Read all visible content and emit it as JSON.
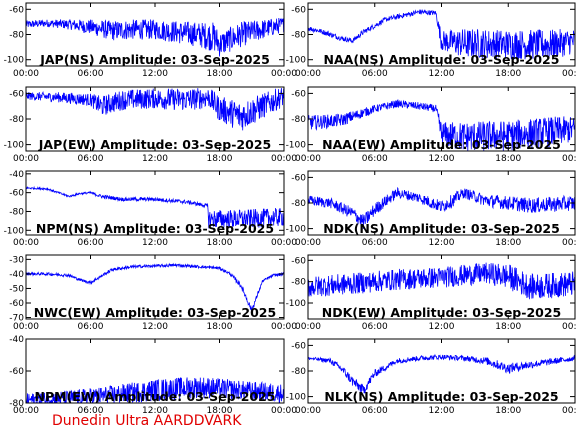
{
  "page": {
    "credit": "Dunedin Ultra AARDDVARK"
  },
  "colors": {
    "trace": "#0000ff",
    "axis": "#000000",
    "credit": "#e00000",
    "background": "#ffffff"
  },
  "chart_data": [
    {
      "type": "line",
      "title": "JAP(NS) Amplitude: 03-Sep-2025",
      "xlim": [
        "00:00",
        "24:00"
      ],
      "xticks": [
        "00:00",
        "06:00",
        "12:00",
        "18:00",
        "00:00"
      ],
      "ylim": [
        -105,
        -55
      ],
      "yticks": [
        -60,
        -80,
        -100
      ],
      "series": [
        {
          "x": [
            0,
            2,
            4,
            6,
            8,
            10,
            12,
            14,
            16,
            17.5,
            18,
            20,
            22,
            24
          ],
          "y": [
            -72,
            -71,
            -72,
            -74,
            -77,
            -76,
            -76,
            -78,
            -80,
            -82,
            -88,
            -80,
            -76,
            -72
          ],
          "noise": [
            3,
            3,
            4,
            6,
            8,
            8,
            8,
            9,
            10,
            12,
            10,
            10,
            8,
            6
          ]
        }
      ]
    },
    {
      "type": "line",
      "title": "NAA(NS) Amplitude: 03-Sep-2025",
      "xlim": [
        "00:00",
        "24:00"
      ],
      "xticks": [
        "00:00",
        "06:00",
        "12:00",
        "18:00",
        "00:00"
      ],
      "ylim": [
        -105,
        -55
      ],
      "yticks": [
        -60,
        -80,
        -100
      ],
      "series": [
        {
          "x": [
            0,
            1,
            3,
            4,
            5,
            7,
            9,
            10,
            11.5,
            12,
            14,
            18,
            22,
            24
          ],
          "y": [
            -75,
            -77,
            -83,
            -85,
            -78,
            -68,
            -64,
            -62,
            -63,
            -85,
            -87,
            -88,
            -88,
            -85
          ],
          "noise": [
            2,
            2,
            2,
            2,
            2,
            2,
            2,
            2,
            2,
            8,
            12,
            12,
            12,
            10
          ]
        }
      ]
    },
    {
      "type": "line",
      "title": "JAP(EW) Amplitude: 03-Sep-2025",
      "xlim": [
        "00:00",
        "24:00"
      ],
      "xticks": [
        "00:00",
        "06:00",
        "12:00",
        "18:00",
        "00:00"
      ],
      "ylim": [
        -105,
        -55
      ],
      "yticks": [
        -60,
        -80,
        -100
      ],
      "series": [
        {
          "x": [
            0,
            3,
            6,
            7,
            9,
            12,
            15,
            17,
            18,
            20,
            24
          ],
          "y": [
            -62,
            -63,
            -65,
            -70,
            -65,
            -64,
            -65,
            -63,
            -72,
            -78,
            -62
          ],
          "noise": [
            3,
            4,
            5,
            8,
            8,
            8,
            9,
            8,
            10,
            12,
            8
          ]
        }
      ]
    },
    {
      "type": "line",
      "title": "NAA(EW) Amplitude: 03-Sep-2025",
      "xlim": [
        "00:00",
        "24:00"
      ],
      "xticks": [
        "00:00",
        "06:00",
        "12:00",
        "18:00",
        "00:00"
      ],
      "ylim": [
        -105,
        -55
      ],
      "yticks": [
        -60,
        -80,
        -100
      ],
      "series": [
        {
          "x": [
            0,
            3,
            6,
            8,
            10,
            11.5,
            12,
            14,
            18,
            22,
            24
          ],
          "y": [
            -83,
            -81,
            -72,
            -68,
            -70,
            -72,
            -92,
            -94,
            -93,
            -90,
            -88
          ],
          "noise": [
            6,
            5,
            3,
            3,
            3,
            3,
            10,
            12,
            12,
            12,
            10
          ]
        }
      ]
    },
    {
      "type": "line",
      "title": "NPM(NS) Amplitude: 03-Sep-2025",
      "xlim": [
        "00:00",
        "24:00"
      ],
      "xticks": [
        "00:00",
        "06:00",
        "12:00",
        "18:00",
        "00:00"
      ],
      "ylim": [
        -105,
        -37
      ],
      "yticks": [
        -40,
        -60,
        -80,
        -100
      ],
      "series": [
        {
          "x": [
            0,
            2,
            3,
            4,
            5,
            6,
            7,
            9,
            12,
            15,
            16.9,
            17,
            20,
            24
          ],
          "y": [
            -55,
            -56,
            -60,
            -64,
            -61,
            -60,
            -64,
            -67,
            -67,
            -70,
            -74,
            -88,
            -88,
            -86
          ],
          "noise": [
            1,
            1,
            1,
            1,
            1,
            1,
            2,
            2,
            2,
            2,
            2,
            10,
            10,
            10
          ]
        }
      ]
    },
    {
      "type": "line",
      "title": "NDK(NS) Amplitude: 03-Sep-2025",
      "xlim": [
        "00:00",
        "24:00"
      ],
      "xticks": [
        "00:00",
        "06:00",
        "12:00",
        "18:00",
        "00:00"
      ],
      "ylim": [
        -105,
        -55
      ],
      "yticks": [
        -60,
        -80,
        -100
      ],
      "series": [
        {
          "x": [
            0,
            2,
            4,
            5,
            6,
            8,
            10,
            12,
            13,
            14,
            16,
            20,
            24
          ],
          "y": [
            -78,
            -80,
            -88,
            -95,
            -85,
            -72,
            -76,
            -83,
            -78,
            -72,
            -78,
            -82,
            -80
          ],
          "noise": [
            4,
            4,
            5,
            6,
            5,
            4,
            4,
            5,
            5,
            4,
            5,
            6,
            6
          ]
        }
      ]
    },
    {
      "type": "line",
      "title": "NWC(EW) Amplitude: 03-Sep-2025",
      "xlim": [
        "00:00",
        "24:00"
      ],
      "xticks": [
        "00:00",
        "06:00",
        "12:00",
        "18:00",
        "00:00"
      ],
      "ylim": [
        -71,
        -27
      ],
      "yticks": [
        -30,
        -40,
        -50,
        -60,
        -70
      ],
      "series": [
        {
          "x": [
            0,
            2,
            4,
            5,
            6,
            8,
            10,
            14,
            18,
            19,
            20,
            21,
            22,
            23,
            24
          ],
          "y": [
            -40,
            -40,
            -41,
            -44,
            -46,
            -37,
            -35,
            -34,
            -36,
            -40,
            -48,
            -65,
            -45,
            -41,
            -40
          ],
          "noise": [
            1,
            1,
            1,
            1,
            1,
            1,
            1,
            1,
            1,
            1,
            2,
            2,
            1,
            1,
            1
          ]
        }
      ]
    },
    {
      "type": "line",
      "title": "NDK(EW) Amplitude: 03-Sep-2025",
      "xlim": [
        "00:00",
        "24:00"
      ],
      "xticks": [
        "00:00",
        "06:00",
        "12:00",
        "18:00",
        "00:00"
      ],
      "ylim": [
        -115,
        -55
      ],
      "yticks": [
        -60,
        -80,
        -100
      ],
      "series": [
        {
          "x": [
            0,
            4,
            8,
            12,
            16,
            18,
            20,
            24
          ],
          "y": [
            -85,
            -82,
            -78,
            -76,
            -72,
            -75,
            -85,
            -82
          ],
          "noise": [
            10,
            10,
            10,
            10,
            10,
            12,
            12,
            12
          ]
        }
      ]
    },
    {
      "type": "line",
      "title": "NPM(EW) Amplitude: 03-Sep-2025",
      "xlim": [
        "00:00",
        "24:00"
      ],
      "xticks": [
        "00:00",
        "06:00",
        "12:00",
        "18:00",
        "00:00"
      ],
      "ylim": [
        -80,
        -40
      ],
      "yticks": [
        -40,
        -60,
        -80
      ],
      "series": [
        {
          "x": [
            0,
            4,
            8,
            12,
            16,
            20,
            24
          ],
          "y": [
            -78,
            -77,
            -75,
            -72,
            -70,
            -72,
            -74
          ],
          "noise": [
            4,
            5,
            6,
            7,
            7,
            6,
            6
          ]
        }
      ]
    },
    {
      "type": "line",
      "title": "NLK(NS) Amplitude: 03-Sep-2025",
      "xlim": [
        "00:00",
        "24:00"
      ],
      "xticks": [
        "00:00",
        "06:00",
        "12:00",
        "18:00",
        "00:00"
      ],
      "ylim": [
        -105,
        -55
      ],
      "yticks": [
        -60,
        -80,
        -100
      ],
      "series": [
        {
          "x": [
            0,
            2,
            3,
            4,
            5,
            6,
            8,
            10,
            12,
            14,
            16,
            18,
            20,
            24
          ],
          "y": [
            -70,
            -72,
            -78,
            -88,
            -95,
            -82,
            -72,
            -70,
            -69,
            -70,
            -72,
            -78,
            -75,
            -70
          ],
          "noise": [
            1,
            2,
            3,
            4,
            4,
            3,
            2,
            2,
            2,
            2,
            3,
            4,
            3,
            2
          ]
        }
      ]
    }
  ]
}
